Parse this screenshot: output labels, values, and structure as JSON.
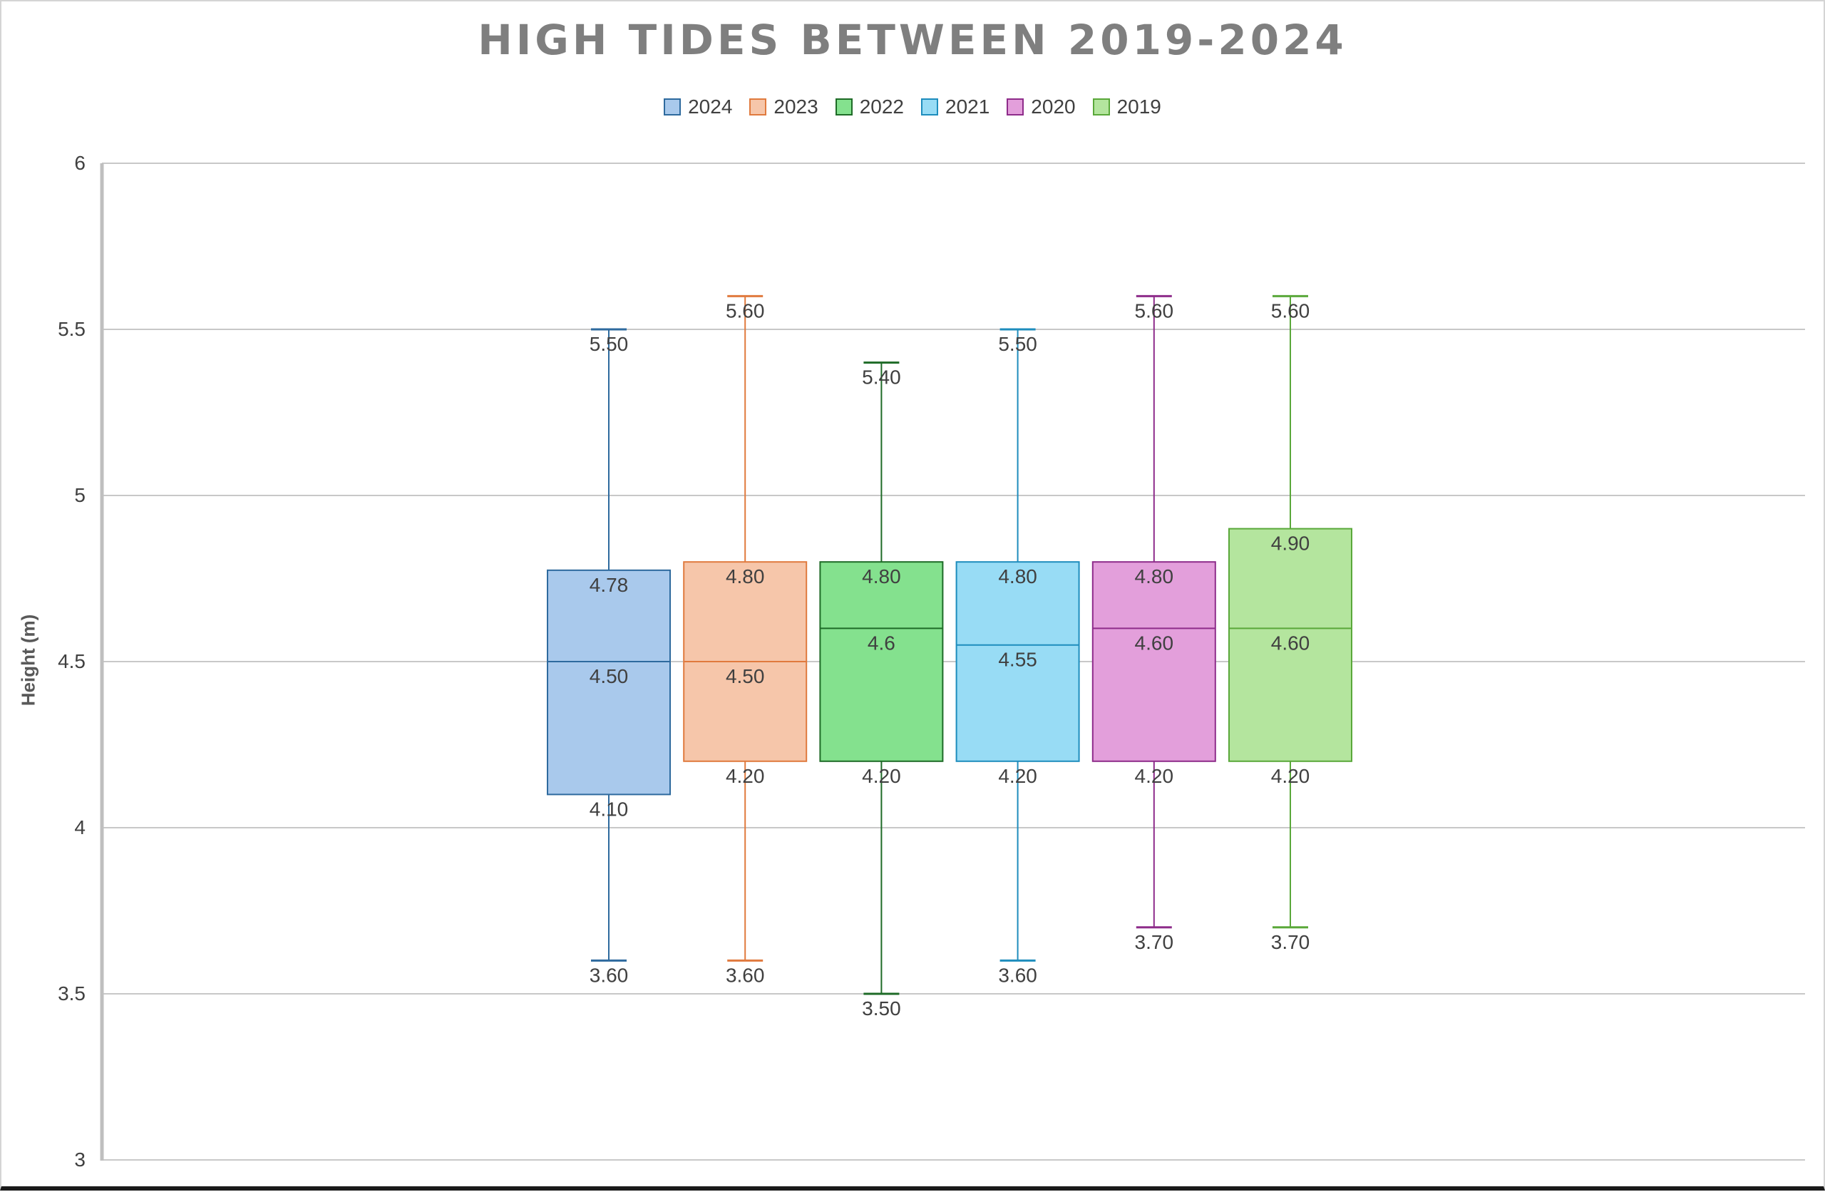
{
  "chart_data": {
    "type": "box",
    "title": "HIGH TIDES BETWEEN 2019-2024",
    "ylabel": "Height (m)",
    "xlabel": "",
    "ylim": [
      3,
      6
    ],
    "yticks": [
      "3",
      "3.5",
      "4",
      "4.5",
      "5",
      "5.5",
      "6"
    ],
    "grid": true,
    "legend_position": "top",
    "series": [
      {
        "name": "2024",
        "min": 3.6,
        "q1": 4.1,
        "median": 4.5,
        "q3": 4.775,
        "max": 5.5,
        "labels": {
          "max": "5.50",
          "q3": "4.78",
          "median": "4.50",
          "q1": "4.10",
          "min": "3.60"
        },
        "fill": "#a9c9ec",
        "stroke": "#2e6a9e"
      },
      {
        "name": "2023",
        "min": 3.6,
        "q1": 4.2,
        "median": 4.5,
        "q3": 4.8,
        "max": 5.6,
        "labels": {
          "max": "5.60",
          "q3": "4.80",
          "median": "4.50",
          "q1": "4.20",
          "min": "3.60"
        },
        "fill": "#f6c6aa",
        "stroke": "#e07a3e"
      },
      {
        "name": "2022",
        "min": 3.5,
        "q1": 4.2,
        "median": 4.6,
        "q3": 4.8,
        "max": 5.4,
        "labels": {
          "max": "5.40",
          "q3": "4.80",
          "median": "4.6",
          "q1": "4.20",
          "min": "3.50"
        },
        "fill": "#84e18e",
        "stroke": "#1e6b27"
      },
      {
        "name": "2021",
        "min": 3.6,
        "q1": 4.2,
        "median": 4.55,
        "q3": 4.8,
        "max": 5.5,
        "labels": {
          "max": "5.50",
          "q3": "4.80",
          "median": "4.55",
          "q1": "4.20",
          "min": "3.60"
        },
        "fill": "#98dcf5",
        "stroke": "#1e8dbd"
      },
      {
        "name": "2020",
        "min": 3.7,
        "q1": 4.2,
        "median": 4.6,
        "q3": 4.8,
        "max": 5.6,
        "labels": {
          "max": "5.60",
          "q3": "4.80",
          "median": "4.60",
          "q1": "4.20",
          "min": "3.70"
        },
        "fill": "#e39fdb",
        "stroke": "#8e2c8a"
      },
      {
        "name": "2019",
        "min": 3.7,
        "q1": 4.2,
        "median": 4.6,
        "q3": 4.9,
        "max": 5.6,
        "labels": {
          "max": "5.60",
          "q3": "4.90",
          "median": "4.60",
          "q1": "4.20",
          "min": "3.70"
        },
        "fill": "#b4e59e",
        "stroke": "#5aa83a"
      }
    ]
  }
}
